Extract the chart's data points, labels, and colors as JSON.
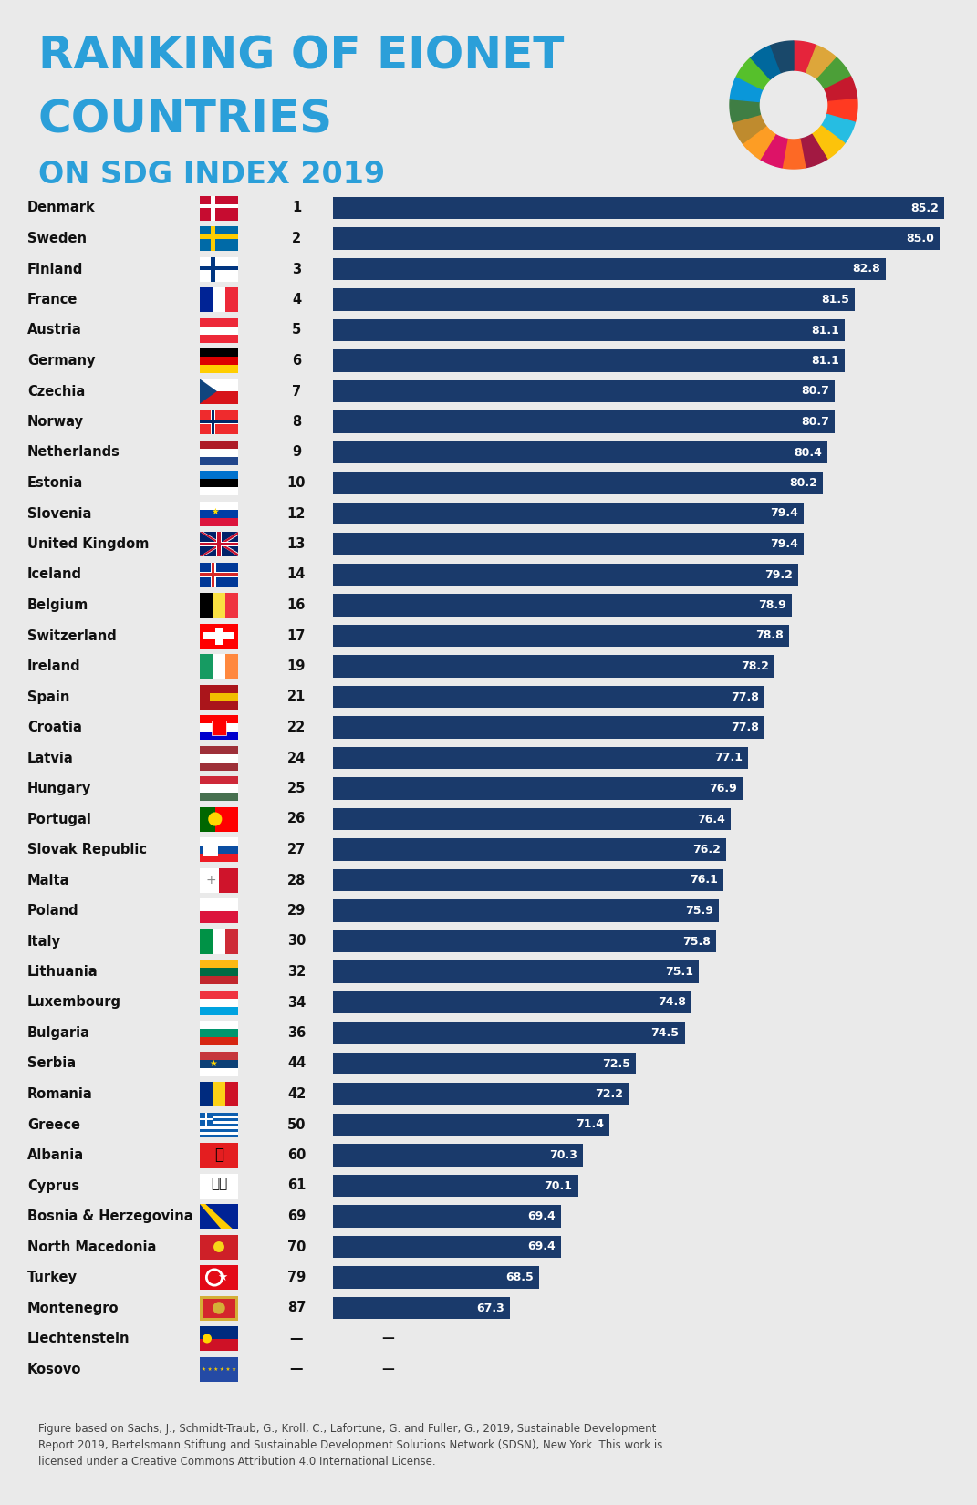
{
  "title_line1": "RANKING OF EIONET",
  "title_line2": "COUNTRIES",
  "title_line3": "ON SDG INDEX 2019",
  "title_color": "#2B9FD9",
  "background_color": "#EAEAEA",
  "bar_color": "#1A3A6B",
  "bar_value_color": "#FFFFFF",
  "countries": [
    "Denmark",
    "Sweden",
    "Finland",
    "France",
    "Austria",
    "Germany",
    "Czechia",
    "Norway",
    "Netherlands",
    "Estonia",
    "Slovenia",
    "United Kingdom",
    "Iceland",
    "Belgium",
    "Switzerland",
    "Ireland",
    "Spain",
    "Croatia",
    "Latvia",
    "Hungary",
    "Portugal",
    "Slovak Republic",
    "Malta",
    "Poland",
    "Italy",
    "Lithuania",
    "Luxembourg",
    "Bulgaria",
    "Serbia",
    "Romania",
    "Greece",
    "Albania",
    "Cyprus",
    "Bosnia & Herzegovina",
    "North Macedonia",
    "Turkey",
    "Montenegro",
    "Liechtenstein",
    "Kosovo"
  ],
  "ranks": [
    "1",
    "2",
    "3",
    "4",
    "5",
    "6",
    "7",
    "8",
    "9",
    "10",
    "12",
    "13",
    "14",
    "16",
    "17",
    "19",
    "21",
    "22",
    "24",
    "25",
    "26",
    "27",
    "28",
    "29",
    "30",
    "32",
    "34",
    "36",
    "44",
    "42",
    "50",
    "60",
    "61",
    "69",
    "70",
    "79",
    "87",
    "—",
    "—"
  ],
  "values": [
    85.2,
    85.0,
    82.8,
    81.5,
    81.1,
    81.1,
    80.7,
    80.7,
    80.4,
    80.2,
    79.4,
    79.4,
    79.2,
    78.9,
    78.8,
    78.2,
    77.8,
    77.8,
    77.1,
    76.9,
    76.4,
    76.2,
    76.1,
    75.9,
    75.8,
    75.1,
    74.8,
    74.5,
    72.5,
    72.2,
    71.4,
    70.3,
    70.1,
    69.4,
    69.4,
    68.5,
    67.3,
    null,
    null
  ],
  "footnote": "Figure based on Sachs, J., Schmidt-Traub, G., Kroll, C., Lafortune, G. and Fuller, G., 2019, Sustainable Development\nReport 2019, Bertelsmann Stiftung and Sustainable Development Solutions Network (SDSN), New York. This work is\nlicensed under a Creative Commons Attribution 4.0 International License.",
  "bar_max_value": 85.2,
  "bar_min_display": 60.0,
  "sdg_colors": [
    "#E5243B",
    "#DDA63A",
    "#4C9F38",
    "#C5192D",
    "#FF3A21",
    "#26BDE2",
    "#FCC30B",
    "#A21942",
    "#FD6925",
    "#DD1367",
    "#FD9D24",
    "#BF8B2E",
    "#3F7E44",
    "#0A97D9",
    "#56C02B",
    "#00689D",
    "#19486A"
  ]
}
